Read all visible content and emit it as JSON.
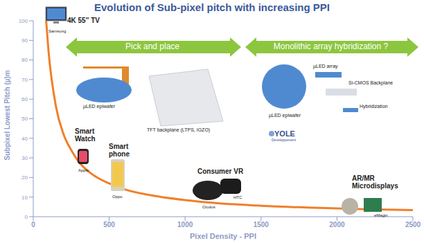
{
  "chart_data": {
    "type": "line",
    "title": "Evolution of Sub-pixel pitch with increasing PPI",
    "x_label": "Pixel Density - PPI",
    "y_label": "Subpixel Lowest Pitch (µ)m",
    "x": [
      85,
      100,
      150,
      200,
      250,
      300,
      400,
      500,
      600,
      800,
      1000,
      1200,
      1500,
      1800,
      2000,
      2200,
      2500
    ],
    "values": [
      100,
      85,
      56,
      42,
      34,
      28,
      21,
      17,
      14,
      10.6,
      8.5,
      7,
      5.6,
      4.7,
      4.2,
      3.8,
      3.4
    ],
    "color": "#f07f2a",
    "line_style": "solid",
    "xlim": [
      0,
      2500
    ],
    "ylim": [
      0,
      100
    ],
    "xticks": [
      0,
      500,
      1000,
      1500,
      2000,
      2500
    ],
    "yticks": [
      0,
      10,
      20,
      30,
      40,
      50,
      60,
      70,
      80,
      90,
      100
    ],
    "grid": false,
    "annotations": [
      "4K 55'' TV",
      "Samsung",
      "Pick and place",
      "Monolithic array hybridization ?",
      "µLED epiwafer",
      "TFT backplane (LTPS, IGZO)",
      "µLED array",
      "Si-CMOS Backplane",
      "Hybridization",
      "µLED epiwafer",
      "YOLE",
      "Développement",
      "Smart Watch",
      "Apple",
      "Smart phone",
      "Oppo",
      "Consumer VR",
      "Oculus",
      "HTC",
      "AR/MR Microdisplays",
      "eMagin"
    ]
  }
}
